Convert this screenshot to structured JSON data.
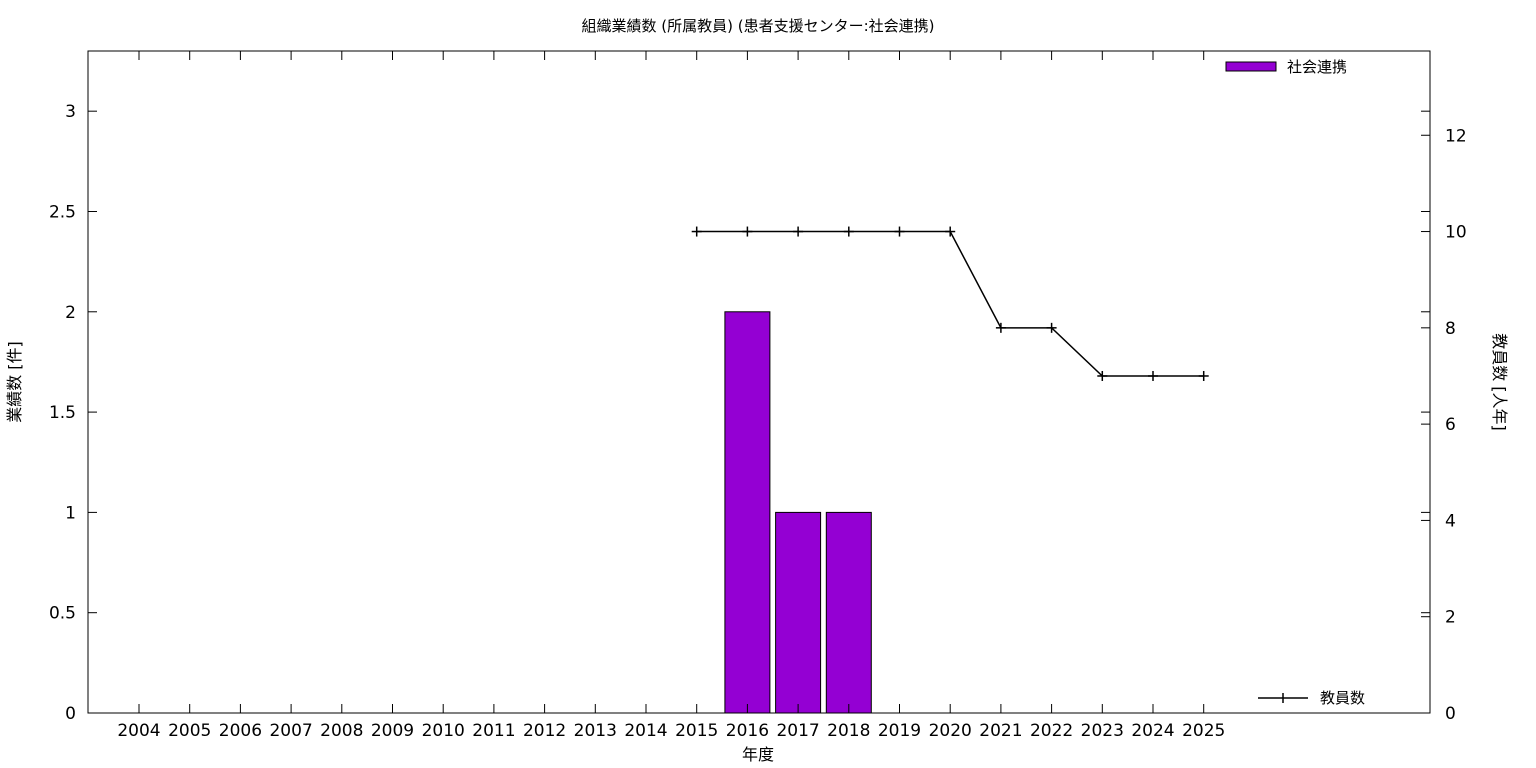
{
  "chart_data": {
    "type": "bar",
    "title": "組織業績数 (所属教員) (患者支援センター:社会連携)",
    "xlabel": "年度",
    "ylabel": "業績数 [件]",
    "y2label": "教員数 [人年]",
    "categories": [
      "2004",
      "2005",
      "2006",
      "2007",
      "2008",
      "2009",
      "2010",
      "2011",
      "2012",
      "2013",
      "2014",
      "2015",
      "2016",
      "2017",
      "2018",
      "2019",
      "2020",
      "2021",
      "2022",
      "2023",
      "2024",
      "2025"
    ],
    "ylim": [
      0,
      3.3
    ],
    "yticks": [
      0,
      0.5,
      1,
      1.5,
      2,
      2.5,
      3
    ],
    "y2lim": [
      0,
      13.75
    ],
    "y2ticks": [
      0,
      2,
      4,
      6,
      8,
      10,
      12
    ],
    "grid": false,
    "series": [
      {
        "name": "社会連携",
        "type": "bar",
        "axis": "left",
        "color": "#9400d3",
        "points": [
          {
            "x": "2016",
            "y": 2
          },
          {
            "x": "2017",
            "y": 1
          },
          {
            "x": "2018",
            "y": 1
          }
        ]
      },
      {
        "name": "教員数",
        "type": "line",
        "axis": "right",
        "color": "#000000",
        "points": [
          {
            "x": "2015",
            "y": 10
          },
          {
            "x": "2016",
            "y": 10
          },
          {
            "x": "2017",
            "y": 10
          },
          {
            "x": "2018",
            "y": 10
          },
          {
            "x": "2019",
            "y": 10
          },
          {
            "x": "2020",
            "y": 10
          },
          {
            "x": "2021",
            "y": 8
          },
          {
            "x": "2022",
            "y": 8
          },
          {
            "x": "2023",
            "y": 7
          },
          {
            "x": "2024",
            "y": 7
          },
          {
            "x": "2025",
            "y": 7
          }
        ]
      }
    ],
    "legend": [
      {
        "label": "社会連携",
        "position": "top-right"
      },
      {
        "label": "教員数",
        "position": "bottom-right"
      }
    ]
  }
}
